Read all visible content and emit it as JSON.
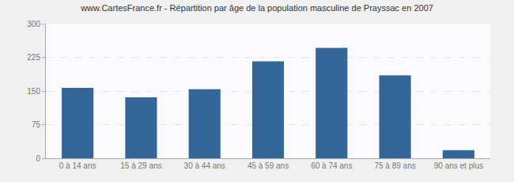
{
  "chart_data": {
    "type": "bar",
    "title": "www.CartesFrance.fr - Répartition par âge de la population masculine de Prayssac en 2007",
    "categories": [
      "0 à 14 ans",
      "15 à 29 ans",
      "30 à 44 ans",
      "45 à 59 ans",
      "60 à 74 ans",
      "75 à 89 ans",
      "90 ans et plus"
    ],
    "values": [
      157,
      136,
      154,
      216,
      246,
      185,
      18
    ],
    "color": "#336699",
    "ylim": [
      0,
      300
    ],
    "yticks": [
      0,
      75,
      150,
      225,
      300
    ],
    "grid": true
  }
}
